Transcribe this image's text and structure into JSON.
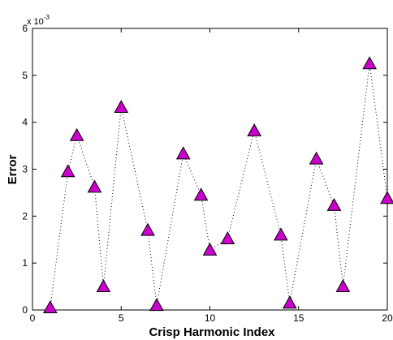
{
  "chart_data": {
    "type": "scatter",
    "xlabel": "Crisp Harmonic Index",
    "ylabel": "Error",
    "y_multiplier_label": "x 10",
    "y_multiplier_exponent": "-3",
    "xlim": [
      0,
      20
    ],
    "ylim": [
      0,
      6
    ],
    "x_ticks": [
      0,
      5,
      10,
      15,
      20
    ],
    "y_ticks": [
      0,
      1,
      2,
      3,
      4,
      5,
      6
    ],
    "grid": false,
    "line_style": "dotted",
    "marker": "triangle",
    "marker_color": "#cc00cc",
    "x": [
      1,
      2,
      2.5,
      3.5,
      4,
      5,
      6.5,
      7,
      8.5,
      9.5,
      10,
      11,
      12.5,
      14,
      14.5,
      16,
      17,
      17.5,
      19,
      20
    ],
    "y": [
      0.05,
      2.95,
      3.72,
      2.62,
      0.5,
      4.32,
      1.7,
      0.1,
      3.33,
      2.45,
      1.28,
      1.52,
      3.82,
      1.6,
      0.15,
      3.22,
      2.23,
      0.5,
      5.25,
      2.38
    ]
  }
}
